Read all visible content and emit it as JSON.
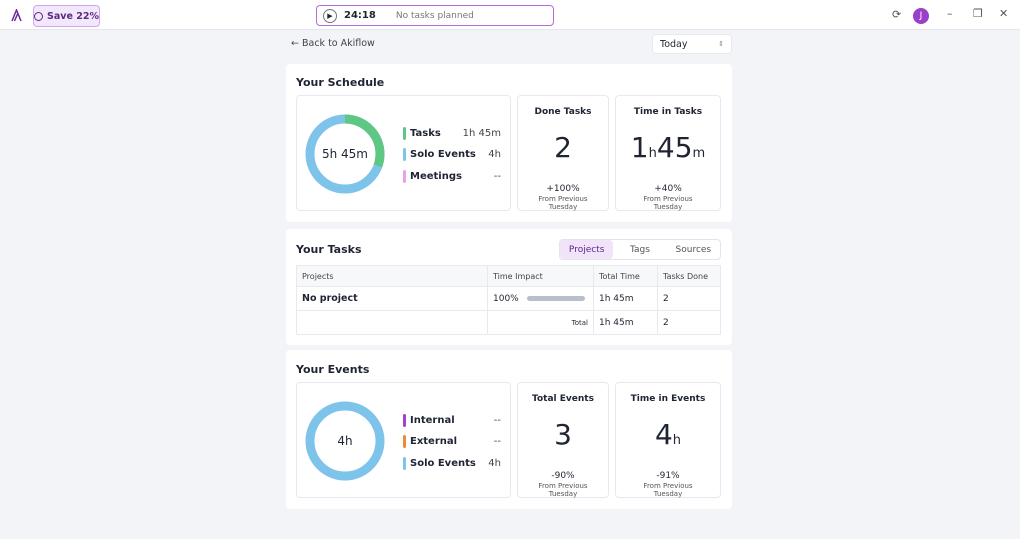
{
  "topbar": {
    "save": "Save 22%",
    "timer": "24:18",
    "status": "No tasks planned",
    "avatar": "J"
  },
  "nav": {
    "back": "Back to Akiflow",
    "range": "Today"
  },
  "schedule": {
    "title": "Your Schedule",
    "total": "5h 45m",
    "legend": [
      {
        "label": "Tasks",
        "value": "1h 45m"
      },
      {
        "label": "Solo Events",
        "value": "4h"
      },
      {
        "label": "Meetings",
        "value": "--"
      }
    ],
    "cards": [
      {
        "title": "Done Tasks",
        "value": [
          {
            "n": "2"
          }
        ],
        "change": "+100%",
        "note": "From Previous Tuesday"
      },
      {
        "title": "Time in Tasks",
        "value": [
          {
            "n": "1",
            "u": "h"
          },
          {
            "n": "45",
            "u": "m"
          }
        ],
        "change": "+40%",
        "note": "From Previous Tuesday"
      }
    ]
  },
  "tasks": {
    "title": "Your Tasks",
    "tabs": [
      "Projects",
      "Tags",
      "Sources"
    ],
    "table": {
      "header": [
        "Projects",
        "Time Impact",
        "Total Time",
        "Tasks Done"
      ],
      "rows": [
        [
          "No project",
          "100%",
          "1h 45m",
          "2"
        ]
      ],
      "total": {
        "label": "Total",
        "time": "1h 45m",
        "done": "2"
      }
    }
  },
  "events": {
    "title": "Your Events",
    "total": "4h",
    "legend": [
      {
        "label": "Internal",
        "value": "--"
      },
      {
        "label": "External",
        "value": "--"
      },
      {
        "label": "Solo Events",
        "value": "4h"
      }
    ],
    "cards": [
      {
        "title": "Total Events",
        "value": [
          {
            "n": "3"
          }
        ],
        "change": "-90%",
        "note": "From Previous Tuesday"
      },
      {
        "title": "Time in Events",
        "value": [
          {
            "n": "4",
            "u": "h"
          }
        ],
        "change": "-91%",
        "note": "From Previous Tuesday"
      }
    ]
  }
}
